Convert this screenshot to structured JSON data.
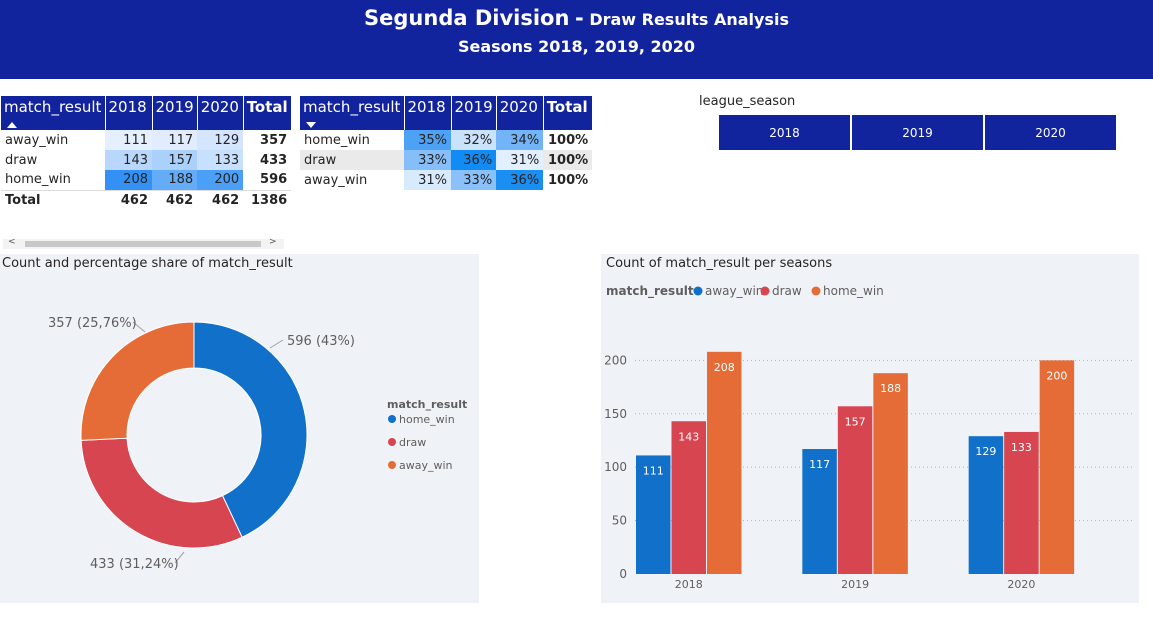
{
  "header": {
    "title_main": "Segunda Division",
    "title_dash": "-",
    "title_sub": "Draw Results Analysis",
    "subtitle": "Seasons 2018, 2019, 2020"
  },
  "count_table": {
    "headers": [
      "match_result",
      "2018",
      "2019",
      "2020",
      "Total"
    ],
    "rows": [
      {
        "label": "away_win",
        "values": [
          "111",
          "117",
          "129"
        ],
        "total": "357"
      },
      {
        "label": "draw",
        "values": [
          "143",
          "157",
          "133"
        ],
        "total": "433"
      },
      {
        "label": "home_win",
        "values": [
          "208",
          "188",
          "200"
        ],
        "total": "596"
      }
    ],
    "total_row": {
      "label": "Total",
      "values": [
        "462",
        "462",
        "462"
      ],
      "total": "1386"
    },
    "cell_colors": [
      [
        "#e4efff",
        "#e1edff",
        "#d4e6ff"
      ],
      [
        "#b9d7fc",
        "#aad1fc",
        "#c6e0fd"
      ],
      [
        "#3391f5",
        "#64acf8",
        "#4c9ff6"
      ]
    ]
  },
  "pct_table": {
    "headers": [
      "match_result",
      "2018",
      "2019",
      "2020",
      "Total"
    ],
    "rows": [
      {
        "label": "home_win",
        "values": [
          "35%",
          "32%",
          "34%"
        ],
        "total": "100%"
      },
      {
        "label": "draw",
        "values": [
          "33%",
          "36%",
          "31%"
        ],
        "total": "100%"
      },
      {
        "label": "away_win",
        "values": [
          "31%",
          "33%",
          "36%"
        ],
        "total": "100%"
      }
    ],
    "cell_colors": [
      [
        "#4da2f6",
        "#cae3fd",
        "#73b4f8"
      ],
      [
        "#85bef9",
        "#118cf4",
        "#e2efff"
      ],
      [
        "#d8eafe",
        "#8ac1fa",
        "#1b8ef2"
      ]
    ]
  },
  "slicer": {
    "title": "league_season",
    "options": [
      "2018",
      "2019",
      "2020"
    ]
  },
  "colors": {
    "brand": "#12239e",
    "away_win": "#118dff",
    "draw": "#d64550",
    "home_win": "#e66c37",
    "donut_home": "#1170c9",
    "bar_away": "#1170c9",
    "bar_draw": "#d64550",
    "bar_home": "#e66c37"
  },
  "chart_data": [
    {
      "type": "pie",
      "title": "Count and percentage share of match_result",
      "legend_title": "match_result",
      "legend_position": "right",
      "donut": true,
      "slices": [
        {
          "name": "home_win",
          "value": 596,
          "label": "596 (43%)",
          "color": "#1170c9"
        },
        {
          "name": "draw",
          "value": 433,
          "label": "433 (31,24%)",
          "color": "#d64550"
        },
        {
          "name": "away_win",
          "value": 357,
          "label": "357 (25,76%)",
          "color": "#e66c37"
        }
      ]
    },
    {
      "type": "bar",
      "title": "Count of match_result per seasons",
      "legend_title": "match_result",
      "legend_position": "top-left",
      "categories": [
        "2018",
        "2019",
        "2020"
      ],
      "series": [
        {
          "name": "away_win",
          "values": [
            111,
            117,
            129
          ],
          "color": "#1170c9"
        },
        {
          "name": "draw",
          "values": [
            143,
            157,
            133
          ],
          "color": "#d64550"
        },
        {
          "name": "home_win",
          "values": [
            208,
            188,
            200
          ],
          "color": "#e66c37"
        }
      ],
      "ylim": [
        0,
        220
      ],
      "yticks": [
        "0",
        "50",
        "100",
        "150",
        "200"
      ],
      "grid": true
    }
  ]
}
